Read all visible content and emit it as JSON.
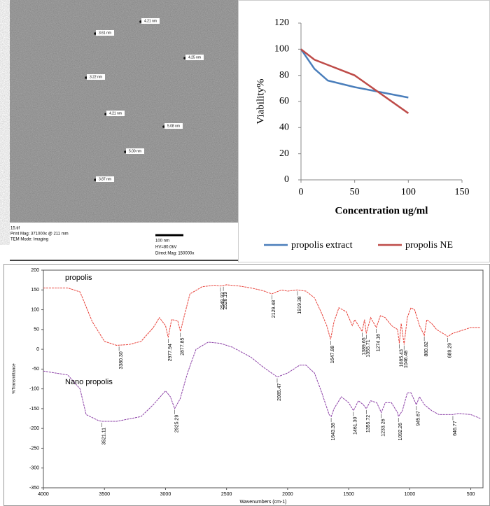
{
  "tem": {
    "labels": [
      "3.61 nm",
      "4.21 nm",
      "4.25 nm",
      "3.22 nm",
      "4.21 nm",
      "5.08 nm",
      "5.00 nm",
      "3.87 nm"
    ],
    "caption": [
      "15.tif",
      "Print Mag: 371000x @ 211 mm",
      "TEM Mode: Imaging"
    ],
    "caption_right": [
      "100 nm",
      "HV=80.0kV",
      "Direct Mag: 150000x"
    ]
  },
  "chart_data": [
    {
      "type": "line",
      "x_label": "Concentration ug/ml",
      "y_label": "Viability%",
      "x": [
        0,
        12.5,
        25,
        50,
        100
      ],
      "series": [
        {
          "name": "propolis extract",
          "color": "#4a7ebb",
          "values": [
            100,
            85,
            76,
            71,
            63
          ]
        },
        {
          "name": "propolis NE",
          "color": "#be4b48",
          "values": [
            100,
            92,
            88,
            80,
            51
          ]
        }
      ],
      "xlim": [
        0,
        150
      ],
      "xticks": [
        0,
        50,
        100,
        150
      ],
      "ylim": [
        0,
        120
      ],
      "yticks": [
        0,
        20,
        40,
        60,
        80,
        100,
        120
      ],
      "legend": "bottom"
    },
    {
      "type": "spectrum",
      "x_label": "Wavenumbers (cm-1)",
      "y_label": "%Transmittance",
      "xlim": [
        4000,
        400
      ],
      "xticks": [
        4000,
        3500,
        3000,
        2500,
        2000,
        1500,
        1000,
        500
      ],
      "ylim": [
        -350,
        200
      ],
      "yticks": [
        200,
        150,
        100,
        50,
        0,
        -50,
        -100,
        -150,
        -200,
        -250,
        -300,
        -350
      ],
      "series": [
        {
          "name": "propolis",
          "color": "#e8423a",
          "x": [
            4000,
            3800,
            3700,
            3600,
            3500,
            3400,
            3300,
            3200,
            3100,
            3050,
            3000,
            2978,
            2950,
            2900,
            2878,
            2850,
            2800,
            2700,
            2600,
            2550,
            2500,
            2400,
            2300,
            2200,
            2130,
            2050,
            2000,
            1920,
            1850,
            1780,
            1720,
            1680,
            1648,
            1620,
            1580,
            1520,
            1470,
            1450,
            1390,
            1370,
            1356,
            1320,
            1274,
            1240,
            1200,
            1150,
            1100,
            1085,
            1070,
            1046,
            1020,
            990,
            960,
            920,
            881,
            860,
            820,
            780,
            700,
            689,
            650,
            600,
            550,
            500,
            420
          ],
          "values": [
            155,
            155,
            145,
            70,
            20,
            10,
            12,
            20,
            55,
            80,
            60,
            30,
            75,
            72,
            45,
            80,
            140,
            158,
            162,
            160,
            163,
            160,
            155,
            148,
            140,
            150,
            147,
            150,
            147,
            130,
            90,
            60,
            25,
            70,
            105,
            95,
            60,
            75,
            45,
            75,
            40,
            80,
            55,
            85,
            80,
            60,
            50,
            15,
            65,
            12,
            80,
            105,
            100,
            60,
            35,
            75,
            65,
            50,
            35,
            32,
            40,
            45,
            50,
            55,
            55
          ],
          "peaks": [
            {
              "value": 3380.3,
              "label": "3380.30"
            },
            {
              "value": 2977.94,
              "label": "2977.94"
            },
            {
              "value": 2877.85,
              "label": "2877.85"
            },
            {
              "value": 2549.93,
              "label": "2549.93"
            },
            {
              "value": 2526.19,
              "label": "2526.19"
            },
            {
              "value": 2129.48,
              "label": "2129.48"
            },
            {
              "value": 1919.38,
              "label": "1919.38"
            },
            {
              "value": 1647.88,
              "label": "1647.88"
            },
            {
              "value": 1389.65,
              "label": "1389.65"
            },
            {
              "value": 1355.71,
              "label": "1355.71"
            },
            {
              "value": 1274.16,
              "label": "1274.16"
            },
            {
              "value": 1085.43,
              "label": "1085.43"
            },
            {
              "value": 1046.48,
              "label": "1046.48"
            },
            {
              "value": 880.82,
              "label": "880.82"
            },
            {
              "value": 689.29,
              "label": "689.29"
            }
          ]
        },
        {
          "name": "Nano propolis",
          "color": "#8b3fa6",
          "x": [
            4000,
            3800,
            3700,
            3650,
            3550,
            3521,
            3400,
            3200,
            3100,
            3000,
            2960,
            2925,
            2880,
            2820,
            2750,
            2650,
            2550,
            2450,
            2300,
            2200,
            2085,
            2000,
            1900,
            1850,
            1780,
            1720,
            1660,
            1643,
            1620,
            1560,
            1500,
            1461,
            1420,
            1380,
            1356,
            1320,
            1270,
            1233,
            1200,
            1150,
            1100,
            1092,
            1060,
            1020,
            990,
            946,
            920,
            880,
            820,
            760,
            700,
            647,
            600,
            500,
            420
          ],
          "values": [
            -55,
            -65,
            -100,
            -165,
            -180,
            -182,
            -182,
            -170,
            -140,
            -105,
            -120,
            -150,
            -125,
            -60,
            0,
            18,
            15,
            5,
            -20,
            -45,
            -70,
            -60,
            -40,
            -40,
            -60,
            -110,
            -165,
            -170,
            -150,
            -120,
            -135,
            -155,
            -130,
            -140,
            -150,
            -130,
            -135,
            -160,
            -135,
            -135,
            -160,
            -170,
            -155,
            -110,
            -110,
            -140,
            -120,
            -140,
            -155,
            -165,
            -165,
            -165,
            -162,
            -165,
            -175
          ],
          "peaks": [
            {
              "value": 3521.11,
              "label": "3521.11"
            },
            {
              "value": 2925.29,
              "label": "2925.29"
            },
            {
              "value": 2085.47,
              "label": "2085.47"
            },
            {
              "value": 1643.38,
              "label": "1643.38"
            },
            {
              "value": 1461.3,
              "label": "1461.30"
            },
            {
              "value": 1355.72,
              "label": "1355.72"
            },
            {
              "value": 1233.26,
              "label": "1233.26"
            },
            {
              "value": 1092.26,
              "label": "1092.26"
            },
            {
              "value": 945.67,
              "label": "945.67"
            },
            {
              "value": 646.77,
              "label": "646.77"
            }
          ]
        }
      ]
    }
  ]
}
